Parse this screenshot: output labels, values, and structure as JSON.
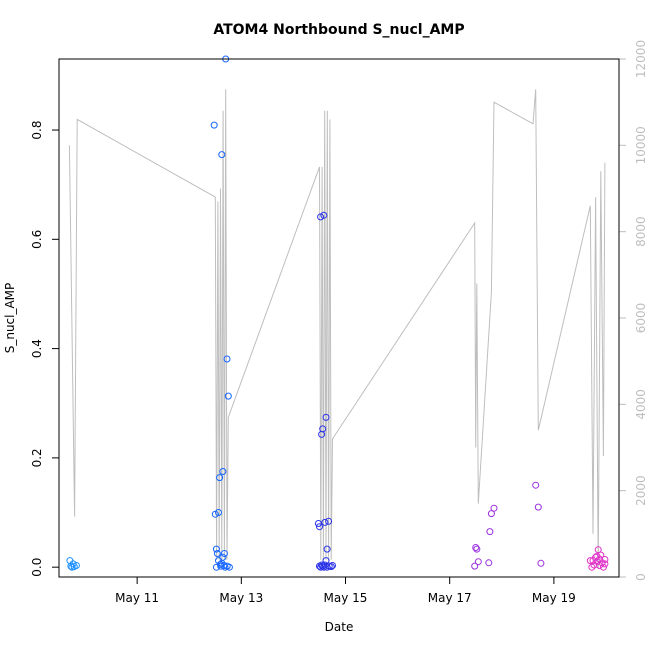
{
  "chart_data": {
    "type": "scatter",
    "title": "ATOM4 Northbound S_nucl_AMP",
    "xlabel": "Date",
    "ylabel": "S_nucl_AMP",
    "y2label": "",
    "x_ticks": [
      "May 11",
      "May 13",
      "May 15",
      "May 17",
      "May 19"
    ],
    "y_ticks": [
      "0.0",
      "0.2",
      "0.4",
      "0.6",
      "0.8"
    ],
    "y2_ticks": [
      "0",
      "2000",
      "4000",
      "6000",
      "8000",
      "10000",
      "12000"
    ],
    "xlim": [
      "May 09 12:00",
      "May 20 06:00"
    ],
    "ylim": [
      -0.018,
      0.93
    ],
    "y2lim": [
      0,
      12000
    ],
    "grid": false,
    "colors": {
      "frame": "#000000",
      "line": "#bebebe",
      "right_axis": "#bebebe"
    },
    "line_series": {
      "axis": "right",
      "points": [
        [
          "May 09 16:48",
          10000
        ],
        [
          "May 09 19:12",
          1400
        ],
        [
          "May 09 20:24",
          10600
        ],
        [
          "May 12 12:00",
          8800
        ],
        [
          "May 12 12:36",
          400
        ],
        [
          "May 12 13:12",
          8700
        ],
        [
          "May 12 13:48",
          400
        ],
        [
          "May 12 14:24",
          9000
        ],
        [
          "May 12 15:00",
          400
        ],
        [
          "May 12 15:36",
          10800
        ],
        [
          "May 12 16:12",
          400
        ],
        [
          "May 12 16:48",
          11300
        ],
        [
          "May 12 17:24",
          400
        ],
        [
          "May 12 18:00",
          3700
        ],
        [
          "May 14 12:00",
          9500
        ],
        [
          "May 14 12:36",
          400
        ],
        [
          "May 14 13:12",
          9500
        ],
        [
          "May 14 13:48",
          400
        ],
        [
          "May 14 14:24",
          10800
        ],
        [
          "May 14 15:00",
          400
        ],
        [
          "May 14 15:36",
          10800
        ],
        [
          "May 14 16:12",
          400
        ],
        [
          "May 14 16:48",
          10600
        ],
        [
          "May 14 17:24",
          400
        ],
        [
          "May 14 18:00",
          3200
        ],
        [
          "May 17 11:31",
          8200
        ],
        [
          "May 17 12:00",
          3000
        ],
        [
          "May 17 12:30",
          6800
        ],
        [
          "May 17 13:12",
          1700
        ],
        [
          "May 17 19:12",
          6600
        ],
        [
          "May 17 20:24",
          11000
        ],
        [
          "May 18 14:24",
          10500
        ],
        [
          "May 18 15:36",
          11300
        ],
        [
          "May 18 16:48",
          3400
        ],
        [
          "May 19 16:48",
          8600
        ],
        [
          "May 19 18:00",
          1000
        ],
        [
          "May 19 19:12",
          8800
        ],
        [
          "May 19 20:24",
          200
        ],
        [
          "May 19 21:36",
          9400
        ],
        [
          "May 19 22:48",
          2800
        ],
        [
          "May 19 23:31",
          9600
        ]
      ]
    },
    "series": [
      {
        "color": "#1e90ff",
        "points": [
          [
            "May 09 17:00",
            0.012
          ],
          [
            "May 09 17:30",
            0.002
          ],
          [
            "May 09 18:00",
            0.0
          ],
          [
            "May 09 18:30",
            0.006
          ],
          [
            "May 09 19:00",
            0.001
          ],
          [
            "May 09 20:00",
            0.003
          ]
        ]
      },
      {
        "color": "#1565ff",
        "points": [
          [
            "May 12 11:31",
            0.809
          ],
          [
            "May 12 12:00",
            0.097
          ],
          [
            "May 12 12:30",
            0.033
          ],
          [
            "May 12 13:00",
            0.025
          ],
          [
            "May 12 13:30",
            0.1
          ],
          [
            "May 12 14:00",
            0.164
          ],
          [
            "May 12 14:24",
            0.005
          ],
          [
            "May 12 15:00",
            0.755
          ],
          [
            "May 12 15:30",
            0.175
          ],
          [
            "May 12 16:12",
            0.025
          ],
          [
            "May 12 16:48",
            0.93
          ],
          [
            "May 12 17:24",
            0.381
          ],
          [
            "May 12 18:00",
            0.313
          ],
          [
            "May 12 12:30",
            0.0
          ],
          [
            "May 12 13:30",
            0.012
          ],
          [
            "May 12 14:30",
            0.002
          ],
          [
            "May 12 15:30",
            0.018
          ],
          [
            "May 12 16:30",
            0.0
          ],
          [
            "May 12 17:30",
            0.002
          ],
          [
            "May 12 18:30",
            0.0
          ],
          [
            "May 12 15:00",
            0.007
          ],
          [
            "May 12 16:00",
            0.003
          ]
        ]
      },
      {
        "color": "#2a32e8",
        "points": [
          [
            "May 14 11:31",
            0.08
          ],
          [
            "May 14 12:00",
            0.074
          ],
          [
            "May 14 12:30",
            0.641
          ],
          [
            "May 14 13:00",
            0.243
          ],
          [
            "May 14 13:30",
            0.253
          ],
          [
            "May 14 14:00",
            0.644
          ],
          [
            "May 14 14:30",
            0.082
          ],
          [
            "May 14 15:00",
            0.274
          ],
          [
            "May 14 15:30",
            0.033
          ],
          [
            "May 14 16:12",
            0.084
          ],
          [
            "May 14 12:00",
            0.002
          ],
          [
            "May 14 12:30",
            0.0
          ],
          [
            "May 14 13:00",
            0.004
          ],
          [
            "May 14 13:30",
            0.002
          ],
          [
            "May 14 14:00",
            0.0
          ],
          [
            "May 14 14:30",
            0.004
          ],
          [
            "May 14 15:00",
            0.012
          ],
          [
            "May 14 15:30",
            0.0
          ],
          [
            "May 14 16:30",
            0.002
          ],
          [
            "May 14 17:24",
            0.001
          ],
          [
            "May 14 18:00",
            0.003
          ]
        ]
      },
      {
        "color": "#9b30e0",
        "points": [
          [
            "May 17 11:31",
            0.002
          ],
          [
            "May 17 12:00",
            0.036
          ],
          [
            "May 17 12:30",
            0.033
          ],
          [
            "May 17 13:12",
            0.01
          ],
          [
            "May 17 18:00",
            0.008
          ],
          [
            "May 17 18:30",
            0.065
          ],
          [
            "May 17 19:12",
            0.098
          ],
          [
            "May 17 20:24",
            0.108
          ],
          [
            "May 18 15:36",
            0.15
          ],
          [
            "May 18 16:48",
            0.11
          ],
          [
            "May 18 18:00",
            0.007
          ]
        ]
      },
      {
        "color": "#e030c8",
        "points": [
          [
            "May 19 16:48",
            0.012
          ],
          [
            "May 19 17:30",
            0.0
          ],
          [
            "May 19 18:00",
            0.012
          ],
          [
            "May 19 18:30",
            0.004
          ],
          [
            "May 19 19:12",
            0.018
          ],
          [
            "May 19 19:48",
            0.02
          ],
          [
            "May 19 20:24",
            0.032
          ],
          [
            "May 19 21:00",
            0.003
          ],
          [
            "May 19 21:36",
            0.022
          ],
          [
            "May 19 22:12",
            0.008
          ],
          [
            "May 19 22:48",
            0.0
          ],
          [
            "May 19 23:31",
            0.014
          ],
          [
            "May 19 23:31",
            0.006
          ],
          [
            "May 19 20:00",
            0.01
          ],
          [
            "May 19 21:00",
            0.015
          ]
        ]
      }
    ]
  }
}
